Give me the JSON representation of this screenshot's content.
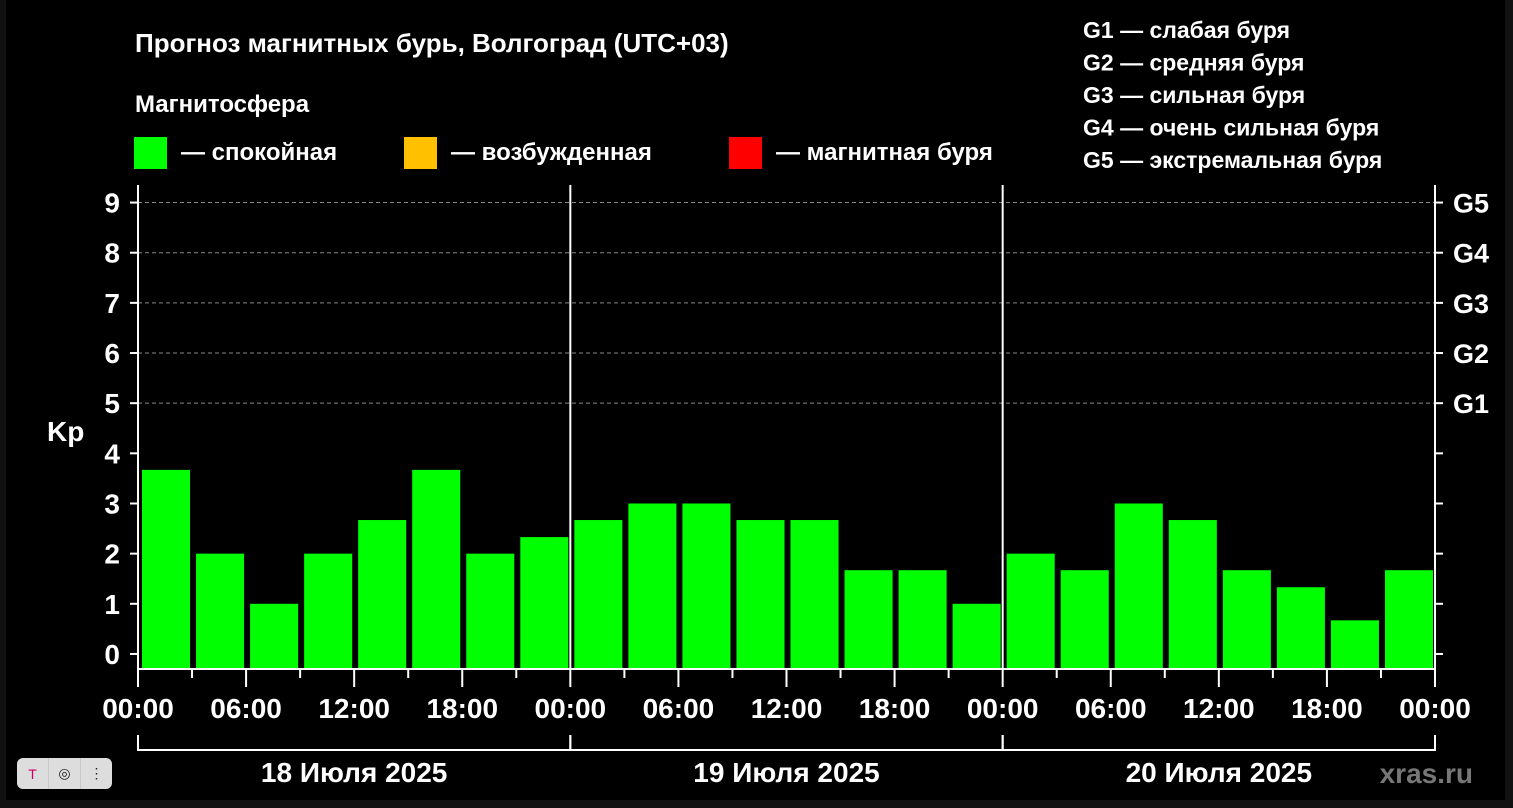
{
  "chart_data": {
    "type": "bar",
    "title": "Прогноз магнитных бурь, Волгоград (UTC+03)",
    "legend_title": "Магнитосфера",
    "legend": [
      {
        "label": "— спокойная",
        "color": "#00ff00"
      },
      {
        "label": "— возбужденная",
        "color": "#ffc000"
      },
      {
        "label": "— магнитная буря",
        "color": "#ff0000"
      }
    ],
    "g_scale": [
      "G1 — слабая буря",
      "G2 — средняя буря",
      "G3 — сильная буря",
      "G4 — очень сильная буря",
      "G5 — экстремальная буря"
    ],
    "ylabel": "Kp",
    "ylim": [
      -0.3,
      9.35
    ],
    "yticks": [
      "0",
      "1",
      "2",
      "3",
      "4",
      "5",
      "6",
      "7",
      "8",
      "9"
    ],
    "right_ticks": [
      {
        "kp": 5,
        "label": "G1"
      },
      {
        "kp": 6,
        "label": "G2"
      },
      {
        "kp": 7,
        "label": "G3"
      },
      {
        "kp": 8,
        "label": "G4"
      },
      {
        "kp": 9,
        "label": "G5"
      }
    ],
    "grid": "dashed horizontal at Kp 5-9",
    "xticks": [
      "00:00",
      "06:00",
      "12:00",
      "18:00",
      "00:00",
      "06:00",
      "12:00",
      "18:00",
      "00:00",
      "06:00",
      "12:00",
      "18:00",
      "00:00"
    ],
    "days": [
      "18 Июля 2025",
      "19 Июля 2025",
      "20 Июля 2025"
    ],
    "interval_hours": 3,
    "values": [
      3.67,
      2.0,
      1.0,
      2.0,
      2.67,
      3.67,
      2.0,
      2.33,
      2.67,
      3.0,
      3.0,
      2.67,
      2.67,
      1.67,
      1.67,
      1.0,
      2.0,
      1.67,
      3.0,
      2.67,
      1.67,
      1.33,
      0.67,
      1.67
    ],
    "bar_color": "#00ff00"
  },
  "watermark": "xras.ru",
  "toolbar": {
    "icons": [
      "text-select-icon",
      "lens-icon",
      "more-icon"
    ],
    "glyphs": [
      "T",
      "◎",
      "⋮"
    ]
  }
}
